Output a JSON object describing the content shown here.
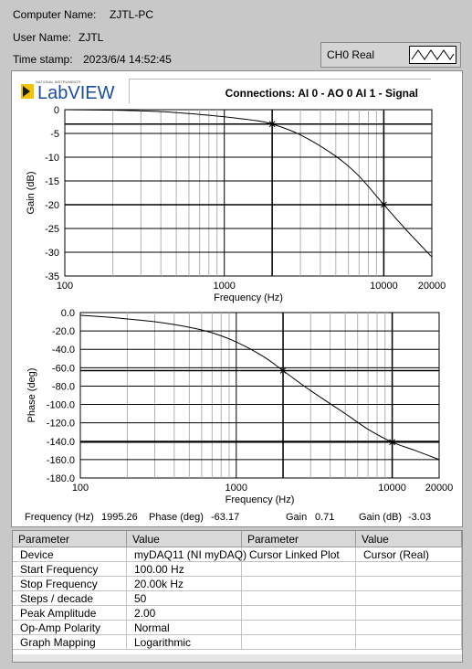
{
  "header": {
    "computer_label": "Computer Name:",
    "computer_value": "ZJTL-PC",
    "user_label": "User Name:",
    "user_value": "ZJTL",
    "time_label": "Time stamp:",
    "time_value": "2023/6/4 14:52:45"
  },
  "legend": {
    "label": "CH0 Real",
    "icon": "waveform-icon"
  },
  "logo": {
    "small_text": "NATIONAL INSTRUMENTS",
    "brand": "LabVIEW"
  },
  "connections": "Connections: AI 0 - AO 0   AI 1 - Signal",
  "chart_data": [
    {
      "type": "line",
      "xlabel": "Frequency (Hz)",
      "ylabel": "Gain (dB)",
      "x_scale": "log",
      "xlim": [
        100,
        20000
      ],
      "ylim": [
        -35,
        0
      ],
      "x_ticks": [
        "100",
        "1000",
        "10000",
        "20000"
      ],
      "y_ticks": [
        "0",
        "-5",
        "-10",
        "-15",
        "-20",
        "-25",
        "-30",
        "-35"
      ],
      "x": [
        100,
        200,
        400,
        700,
        1000,
        1500,
        1995,
        3000,
        5000,
        7000,
        10000,
        14000,
        20000
      ],
      "y": [
        0,
        -0.1,
        -0.4,
        -1.0,
        -1.5,
        -2.2,
        -3.03,
        -5.3,
        -9.8,
        -14.0,
        -20.0,
        -25.5,
        -31.0
      ],
      "cursors": [
        {
          "x": 1995,
          "y": -3.03
        },
        {
          "x": 10000,
          "y": -20.0
        }
      ]
    },
    {
      "type": "line",
      "xlabel": "Frequency (Hz)",
      "ylabel": "Phase (deg)",
      "x_scale": "log",
      "xlim": [
        100,
        20000
      ],
      "ylim": [
        -180,
        0
      ],
      "x_ticks": [
        "100",
        "1000",
        "10000",
        "20000"
      ],
      "y_ticks": [
        "0.0",
        "-20.0",
        "-40.0",
        "-60.0",
        "-80.0",
        "-100.0",
        "-120.0",
        "-140.0",
        "-160.0",
        "-180.0"
      ],
      "x": [
        100,
        150,
        200,
        300,
        500,
        700,
        1000,
        1500,
        1995,
        3000,
        5000,
        7000,
        10000,
        14000,
        20000
      ],
      "y": [
        -3,
        -5,
        -7,
        -10,
        -16,
        -22,
        -32,
        -48,
        -63.17,
        -85,
        -110,
        -127,
        -141,
        -150,
        -160
      ],
      "cursors": [
        {
          "x": 1995,
          "y": -63.17
        },
        {
          "x": 10000,
          "y": -141
        }
      ]
    }
  ],
  "readouts": {
    "freq_label": "Frequency (Hz)",
    "freq_value": "1995.26",
    "phase_label": "Phase (deg)",
    "phase_value": "-63.17",
    "gain_label": "Gain",
    "gain_value": "0.71",
    "gaindb_label": "Gain (dB)",
    "gaindb_value": "-3.03"
  },
  "table": {
    "headers": [
      "Parameter",
      "Value",
      "Parameter",
      "Value"
    ],
    "rows": [
      [
        "Device",
        "myDAQ11 (NI myDAQ)",
        "Cursor Linked Plot",
        "Cursor (Real)"
      ],
      [
        "Start Frequency",
        "100.00 Hz",
        "",
        ""
      ],
      [
        "Stop Frequency",
        "20.00k Hz",
        "",
        ""
      ],
      [
        "Steps / decade",
        "50",
        "",
        ""
      ],
      [
        "Peak Amplitude",
        "2.00",
        "",
        ""
      ],
      [
        "Op-Amp Polarity",
        "Normal",
        "",
        ""
      ],
      [
        "Graph Mapping",
        "Logarithmic",
        "",
        ""
      ]
    ]
  }
}
